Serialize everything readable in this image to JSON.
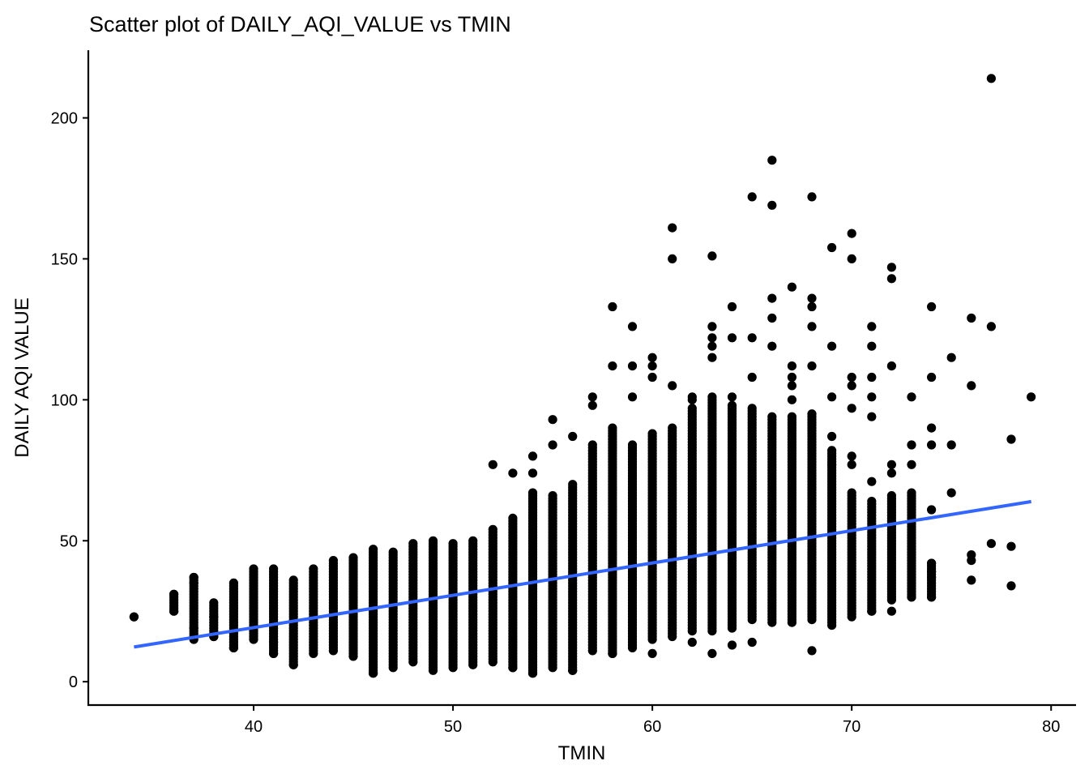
{
  "chart_data": {
    "type": "scatter",
    "title": "Scatter plot of DAILY_AQI_VALUE vs TMIN",
    "xlabel": "TMIN",
    "ylabel": "DAILY AQI VALUE",
    "xlim": [
      31.75,
      81.25
    ],
    "ylim": [
      -8,
      224
    ],
    "x_ticks": [
      40,
      50,
      60,
      70,
      80
    ],
    "y_ticks": [
      0,
      50,
      100,
      150,
      200
    ],
    "grid": false,
    "legend": "none",
    "point_color": "#000000",
    "trend_color": "#3366FF",
    "trend_line": {
      "x": [
        34,
        79
      ],
      "y": [
        12.3,
        63.9
      ]
    },
    "columns": [
      {
        "x": 34,
        "min": 23,
        "max": 23
      },
      {
        "x": 36,
        "min": 25,
        "max": 31
      },
      {
        "x": 37,
        "min": 15,
        "max": 37
      },
      {
        "x": 38,
        "min": 16,
        "max": 28
      },
      {
        "x": 39,
        "min": 12,
        "max": 35
      },
      {
        "x": 40,
        "min": 15,
        "max": 40
      },
      {
        "x": 41,
        "min": 10,
        "max": 40
      },
      {
        "x": 42,
        "min": 6,
        "max": 36
      },
      {
        "x": 43,
        "min": 10,
        "max": 40
      },
      {
        "x": 44,
        "min": 11,
        "max": 43
      },
      {
        "x": 45,
        "min": 9,
        "max": 44
      },
      {
        "x": 46,
        "min": 3,
        "max": 47
      },
      {
        "x": 47,
        "min": 5,
        "max": 46
      },
      {
        "x": 48,
        "min": 7,
        "max": 49
      },
      {
        "x": 49,
        "min": 4,
        "max": 50
      },
      {
        "x": 50,
        "min": 5,
        "max": 49
      },
      {
        "x": 51,
        "min": 6,
        "max": 50
      },
      {
        "x": 52,
        "min": 7,
        "max": 54
      },
      {
        "x": 53,
        "min": 5,
        "max": 58
      },
      {
        "x": 54,
        "min": 3,
        "max": 67
      },
      {
        "x": 55,
        "min": 5,
        "max": 66
      },
      {
        "x": 56,
        "min": 4,
        "max": 70
      },
      {
        "x": 57,
        "min": 11,
        "max": 84
      },
      {
        "x": 58,
        "min": 10,
        "max": 90
      },
      {
        "x": 59,
        "min": 12,
        "max": 84
      },
      {
        "x": 60,
        "min": 15,
        "max": 88
      },
      {
        "x": 61,
        "min": 16,
        "max": 90
      },
      {
        "x": 62,
        "min": 18,
        "max": 97
      },
      {
        "x": 63,
        "min": 18,
        "max": 101
      },
      {
        "x": 64,
        "min": 19,
        "max": 98
      },
      {
        "x": 65,
        "min": 22,
        "max": 97
      },
      {
        "x": 66,
        "min": 21,
        "max": 94
      },
      {
        "x": 67,
        "min": 21,
        "max": 94
      },
      {
        "x": 68,
        "min": 22,
        "max": 95
      },
      {
        "x": 69,
        "min": 20,
        "max": 82
      },
      {
        "x": 70,
        "min": 23,
        "max": 67
      },
      {
        "x": 71,
        "min": 25,
        "max": 64
      },
      {
        "x": 72,
        "min": 29,
        "max": 66
      },
      {
        "x": 73,
        "min": 30,
        "max": 67
      },
      {
        "x": 74,
        "min": 30,
        "max": 42
      }
    ],
    "points": [
      {
        "x": 77,
        "y": 214
      },
      {
        "x": 66,
        "y": 185
      },
      {
        "x": 65,
        "y": 172
      },
      {
        "x": 68,
        "y": 172
      },
      {
        "x": 66,
        "y": 169
      },
      {
        "x": 61,
        "y": 161
      },
      {
        "x": 70,
        "y": 159
      },
      {
        "x": 69,
        "y": 154
      },
      {
        "x": 63,
        "y": 151
      },
      {
        "x": 61,
        "y": 150
      },
      {
        "x": 70,
        "y": 150
      },
      {
        "x": 72,
        "y": 147
      },
      {
        "x": 72,
        "y": 143
      },
      {
        "x": 67,
        "y": 140
      },
      {
        "x": 66,
        "y": 136
      },
      {
        "x": 68,
        "y": 136
      },
      {
        "x": 68,
        "y": 133
      },
      {
        "x": 58,
        "y": 133
      },
      {
        "x": 64,
        "y": 133
      },
      {
        "x": 74,
        "y": 133
      },
      {
        "x": 76,
        "y": 129
      },
      {
        "x": 66,
        "y": 129
      },
      {
        "x": 59,
        "y": 126
      },
      {
        "x": 63,
        "y": 126
      },
      {
        "x": 68,
        "y": 126
      },
      {
        "x": 71,
        "y": 126
      },
      {
        "x": 77,
        "y": 126
      },
      {
        "x": 63,
        "y": 122
      },
      {
        "x": 64,
        "y": 122
      },
      {
        "x": 65,
        "y": 122
      },
      {
        "x": 63,
        "y": 119
      },
      {
        "x": 66,
        "y": 119
      },
      {
        "x": 69,
        "y": 119
      },
      {
        "x": 71,
        "y": 119
      },
      {
        "x": 63,
        "y": 115
      },
      {
        "x": 60,
        "y": 115
      },
      {
        "x": 75,
        "y": 115
      },
      {
        "x": 60,
        "y": 112
      },
      {
        "x": 58,
        "y": 112
      },
      {
        "x": 59,
        "y": 112
      },
      {
        "x": 67,
        "y": 112
      },
      {
        "x": 68,
        "y": 112
      },
      {
        "x": 72,
        "y": 112
      },
      {
        "x": 60,
        "y": 108
      },
      {
        "x": 65,
        "y": 108
      },
      {
        "x": 67,
        "y": 108
      },
      {
        "x": 70,
        "y": 108
      },
      {
        "x": 71,
        "y": 108
      },
      {
        "x": 74,
        "y": 108
      },
      {
        "x": 61,
        "y": 105
      },
      {
        "x": 67,
        "y": 105
      },
      {
        "x": 70,
        "y": 105
      },
      {
        "x": 76,
        "y": 105
      },
      {
        "x": 62,
        "y": 101
      },
      {
        "x": 57,
        "y": 101
      },
      {
        "x": 59,
        "y": 101
      },
      {
        "x": 69,
        "y": 101
      },
      {
        "x": 71,
        "y": 101
      },
      {
        "x": 73,
        "y": 101
      },
      {
        "x": 79,
        "y": 101
      },
      {
        "x": 57,
        "y": 98
      },
      {
        "x": 70,
        "y": 97
      },
      {
        "x": 71,
        "y": 94
      },
      {
        "x": 55,
        "y": 93
      },
      {
        "x": 74,
        "y": 90
      },
      {
        "x": 78,
        "y": 86
      },
      {
        "x": 55,
        "y": 84
      },
      {
        "x": 73,
        "y": 84
      },
      {
        "x": 74,
        "y": 84
      },
      {
        "x": 75,
        "y": 84
      },
      {
        "x": 56,
        "y": 87
      },
      {
        "x": 54,
        "y": 80
      },
      {
        "x": 70,
        "y": 80
      },
      {
        "x": 52,
        "y": 77
      },
      {
        "x": 69,
        "y": 77
      },
      {
        "x": 72,
        "y": 77
      },
      {
        "x": 73,
        "y": 77
      },
      {
        "x": 53,
        "y": 74
      },
      {
        "x": 54,
        "y": 74
      },
      {
        "x": 72,
        "y": 74
      },
      {
        "x": 71,
        "y": 71
      },
      {
        "x": 75,
        "y": 67
      },
      {
        "x": 74,
        "y": 61
      },
      {
        "x": 70,
        "y": 77
      },
      {
        "x": 69,
        "y": 87
      },
      {
        "x": 67,
        "y": 100
      },
      {
        "x": 64,
        "y": 101
      },
      {
        "x": 62,
        "y": 100
      },
      {
        "x": 78,
        "y": 48
      },
      {
        "x": 77,
        "y": 49
      },
      {
        "x": 76,
        "y": 45
      },
      {
        "x": 76,
        "y": 43
      },
      {
        "x": 76,
        "y": 36
      },
      {
        "x": 78,
        "y": 34
      },
      {
        "x": 74,
        "y": 42
      },
      {
        "x": 74,
        "y": 39
      },
      {
        "x": 74,
        "y": 37
      },
      {
        "x": 74,
        "y": 30
      },
      {
        "x": 73,
        "y": 30
      },
      {
        "x": 72,
        "y": 25
      },
      {
        "x": 71,
        "y": 25
      },
      {
        "x": 68,
        "y": 11
      },
      {
        "x": 63,
        "y": 10
      },
      {
        "x": 64,
        "y": 13
      },
      {
        "x": 65,
        "y": 14
      },
      {
        "x": 62,
        "y": 14
      },
      {
        "x": 58,
        "y": 10
      },
      {
        "x": 60,
        "y": 10
      },
      {
        "x": 53,
        "y": 5
      },
      {
        "x": 46,
        "y": 3
      },
      {
        "x": 54,
        "y": 3
      },
      {
        "x": 56,
        "y": 4
      },
      {
        "x": 39,
        "y": 12
      },
      {
        "x": 41,
        "y": 14
      },
      {
        "x": 41,
        "y": 10
      },
      {
        "x": 42,
        "y": 6
      },
      {
        "x": 37,
        "y": 19
      },
      {
        "x": 38,
        "y": 16
      },
      {
        "x": 38,
        "y": 23
      },
      {
        "x": 36,
        "y": 25
      },
      {
        "x": 34,
        "y": 23
      },
      {
        "x": 36,
        "y": 31
      },
      {
        "x": 37,
        "y": 37
      },
      {
        "x": 37,
        "y": 35
      }
    ]
  }
}
